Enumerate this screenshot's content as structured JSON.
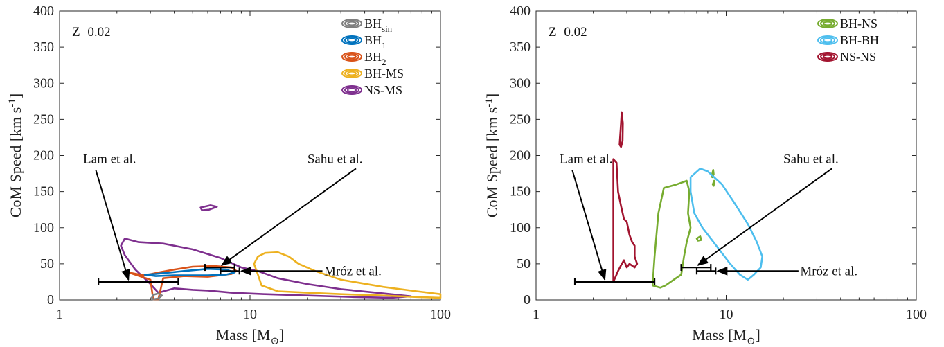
{
  "chart_data": [
    {
      "type": "line",
      "panel": "left",
      "xlabel": "Mass [M",
      "xlabel_sub": "⊙",
      "xlabel_close": "]",
      "ylabel": "CoM Speed [km s",
      "ylabel_sup": "-1",
      "ylabel_close": "]",
      "xscale": "log",
      "xlim": [
        1,
        100
      ],
      "ylim": [
        0,
        400
      ],
      "xticks": [
        {
          "v": 1,
          "label": "1"
        },
        {
          "v": 10,
          "label": "10"
        },
        {
          "v": 100,
          "label": "100"
        }
      ],
      "yticks": [
        {
          "v": 0,
          "label": "0"
        },
        {
          "v": 50,
          "label": "50"
        },
        {
          "v": 100,
          "label": "100"
        },
        {
          "v": 150,
          "label": "150"
        },
        {
          "v": 200,
          "label": "200"
        },
        {
          "v": 250,
          "label": "250"
        },
        {
          "v": 300,
          "label": "300"
        },
        {
          "v": 350,
          "label": "350"
        },
        {
          "v": 400,
          "label": "400"
        }
      ],
      "metallicity_label": "Z=0.02",
      "legend_position": "top-right",
      "legend": [
        {
          "name": "BH",
          "sub": "sin",
          "color": "#7f7f7f"
        },
        {
          "name": "BH",
          "sub": "1",
          "color": "#0072bd"
        },
        {
          "name": "BH",
          "sub": "2",
          "color": "#d95319"
        },
        {
          "name": "BH-MS",
          "sub": "",
          "color": "#edb120"
        },
        {
          "name": "NS-MS",
          "sub": "",
          "color": "#7e2f8e"
        }
      ],
      "series": [
        {
          "legend_index": 4,
          "color": "#7e2f8e",
          "points": [
            [
              2.2,
              85
            ],
            [
              2.6,
              80
            ],
            [
              3.5,
              78
            ],
            [
              5,
              70
            ],
            [
              7,
              58
            ],
            [
              9,
              45
            ],
            [
              11,
              40
            ],
            [
              14,
              30
            ],
            [
              20,
              22
            ],
            [
              30,
              15
            ],
            [
              50,
              9
            ],
            [
              70,
              5
            ],
            [
              55,
              3
            ],
            [
              35,
              4
            ],
            [
              20,
              6
            ],
            [
              12,
              8
            ],
            [
              8,
              10
            ],
            [
              6,
              13
            ],
            [
              5,
              14
            ],
            [
              4,
              16
            ],
            [
              3.3,
              10
            ],
            [
              3.0,
              22
            ],
            [
              2.5,
              42
            ],
            [
              2.2,
              62
            ],
            [
              2.1,
              75
            ],
            [
              2.2,
              85
            ]
          ]
        },
        {
          "legend_index": 4,
          "color": "#7e2f8e",
          "points": [
            [
              5.5,
              128
            ],
            [
              6.2,
              131
            ],
            [
              6.7,
              129
            ],
            [
              6.1,
              125
            ],
            [
              5.6,
              124
            ],
            [
              5.5,
              128
            ]
          ]
        },
        {
          "legend_index": 3,
          "color": "#edb120",
          "points": [
            [
              10.5,
              50
            ],
            [
              11,
              60
            ],
            [
              12,
              65
            ],
            [
              14,
              66
            ],
            [
              16,
              60
            ],
            [
              18,
              50
            ],
            [
              22,
              40
            ],
            [
              30,
              28
            ],
            [
              50,
              18
            ],
            [
              75,
              12
            ],
            [
              100,
              8
            ],
            [
              100,
              3
            ],
            [
              75,
              4
            ],
            [
              50,
              6
            ],
            [
              30,
              8
            ],
            [
              20,
              10
            ],
            [
              14,
              12
            ],
            [
              11.5,
              20
            ],
            [
              11,
              35
            ],
            [
              10.5,
              50
            ]
          ]
        },
        {
          "legend_index": 2,
          "color": "#d95319",
          "points": [
            [
              2.3,
              38
            ],
            [
              2.8,
              34
            ],
            [
              3.3,
              38
            ],
            [
              4,
              42
            ],
            [
              5,
              46
            ],
            [
              6.5,
              47
            ],
            [
              8,
              45
            ],
            [
              8.5,
              40
            ],
            [
              8,
              36
            ],
            [
              6,
              32
            ],
            [
              4.5,
              33
            ],
            [
              3.5,
              30
            ],
            [
              3.3,
              1
            ],
            [
              3.1,
              1
            ],
            [
              3.0,
              28
            ],
            [
              2.7,
              32
            ],
            [
              2.3,
              38
            ]
          ]
        },
        {
          "legend_index": 1,
          "color": "#0072bd",
          "points": [
            [
              2.8,
              35
            ],
            [
              3.2,
              36
            ],
            [
              4.5,
              40
            ],
            [
              6,
              43
            ],
            [
              7.5,
              42
            ],
            [
              8.3,
              38
            ],
            [
              7.5,
              35
            ],
            [
              6,
              34
            ],
            [
              4,
              34
            ],
            [
              3.2,
              33
            ],
            [
              2.8,
              35
            ]
          ]
        },
        {
          "legend_index": 0,
          "color": "#7f7f7f",
          "points": [
            [
              3.1,
              1
            ],
            [
              3.3,
              2
            ],
            [
              3.45,
              6
            ],
            [
              3.3,
              9
            ],
            [
              3.1,
              7
            ],
            [
              3.05,
              3
            ],
            [
              3.1,
              1
            ]
          ]
        }
      ],
      "observations": [
        {
          "label": "Lam et al.",
          "mass": 2.3,
          "mass_lo": 1.6,
          "mass_hi": 4.2,
          "speed": 25,
          "label_x_mass": 1.33,
          "label_y": 195,
          "label_align": "start",
          "arrow_from_mass": 1.55,
          "arrow_from_speed": 180,
          "arrow_to_mass": 2.3,
          "arrow_to_speed": 28
        },
        {
          "label": "Sahu et al.",
          "mass": 7.1,
          "mass_lo": 5.8,
          "mass_hi": 8.3,
          "speed": 45,
          "label_x_mass": 39,
          "label_y": 195,
          "label_align": "end",
          "arrow_from_mass": 36,
          "arrow_from_speed": 182,
          "arrow_to_mass": 7.1,
          "arrow_to_speed": 48
        },
        {
          "label": "Mróz et al.",
          "mass": 7.9,
          "mass_lo": 7.0,
          "mass_hi": 8.8,
          "speed": 40,
          "label_x_mass": 24.5,
          "label_y": 40,
          "label_align": "start",
          "arrow_from_mass": 24,
          "arrow_from_speed": 40,
          "arrow_to_mass": 9.0,
          "arrow_to_speed": 40
        }
      ]
    },
    {
      "type": "line",
      "panel": "right",
      "xlabel": "Mass [M",
      "xlabel_sub": "⊙",
      "xlabel_close": "]",
      "ylabel": "CoM Speed [km s",
      "ylabel_sup": "-1",
      "ylabel_close": "]",
      "xscale": "log",
      "xlim": [
        1,
        100
      ],
      "ylim": [
        0,
        400
      ],
      "xticks": [
        {
          "v": 1,
          "label": "1"
        },
        {
          "v": 10,
          "label": "10"
        },
        {
          "v": 100,
          "label": "100"
        }
      ],
      "yticks": [
        {
          "v": 0,
          "label": "0"
        },
        {
          "v": 50,
          "label": "50"
        },
        {
          "v": 100,
          "label": "100"
        },
        {
          "v": 150,
          "label": "150"
        },
        {
          "v": 200,
          "label": "200"
        },
        {
          "v": 250,
          "label": "250"
        },
        {
          "v": 300,
          "label": "300"
        },
        {
          "v": 350,
          "label": "350"
        },
        {
          "v": 400,
          "label": "400"
        }
      ],
      "metallicity_label": "Z=0.02",
      "legend_position": "top-right",
      "legend": [
        {
          "name": "BH-NS",
          "sub": "",
          "color": "#77ac30"
        },
        {
          "name": "BH-BH",
          "sub": "",
          "color": "#4dbeee"
        },
        {
          "name": "NS-NS",
          "sub": "",
          "color": "#a2142f"
        }
      ],
      "series": [
        {
          "legend_index": 2,
          "color": "#a2142f",
          "points": [
            [
              2.55,
              25
            ],
            [
              2.55,
              100
            ],
            [
              2.55,
              195
            ],
            [
              2.65,
              190
            ],
            [
              2.7,
              150
            ],
            [
              2.8,
              130
            ],
            [
              2.9,
              112
            ],
            [
              3.0,
              108
            ],
            [
              3.1,
              90
            ],
            [
              3.2,
              80
            ],
            [
              3.3,
              75
            ],
            [
              3.3,
              60
            ],
            [
              3.4,
              50
            ],
            [
              3.3,
              45
            ],
            [
              3.1,
              50
            ],
            [
              3.0,
              45
            ],
            [
              2.9,
              55
            ],
            [
              2.8,
              48
            ],
            [
              2.7,
              40
            ],
            [
              2.6,
              30
            ],
            [
              2.55,
              25
            ]
          ]
        },
        {
          "legend_index": 2,
          "color": "#a2142f",
          "points": [
            [
              2.75,
              215
            ],
            [
              2.8,
              245
            ],
            [
              2.82,
              260
            ],
            [
              2.86,
              245
            ],
            [
              2.85,
              220
            ],
            [
              2.8,
              212
            ],
            [
              2.75,
              215
            ]
          ]
        },
        {
          "legend_index": 0,
          "color": "#77ac30",
          "points": [
            [
              4.1,
              20
            ],
            [
              4.2,
              60
            ],
            [
              4.4,
              120
            ],
            [
              4.7,
              155
            ],
            [
              5.5,
              160
            ],
            [
              6.2,
              165
            ],
            [
              6.4,
              150
            ],
            [
              6.3,
              120
            ],
            [
              6.5,
              100
            ],
            [
              6.2,
              80
            ],
            [
              6.0,
              60
            ],
            [
              5.8,
              35
            ],
            [
              5.3,
              28
            ],
            [
              4.8,
              20
            ],
            [
              4.5,
              17
            ],
            [
              4.1,
              20
            ]
          ]
        },
        {
          "legend_index": 0,
          "color": "#77ac30",
          "points": [
            [
              8.4,
              172
            ],
            [
              8.55,
              180
            ],
            [
              8.6,
              174
            ],
            [
              8.45,
              170
            ],
            [
              8.4,
              172
            ]
          ]
        },
        {
          "legend_index": 0,
          "color": "#77ac30",
          "points": [
            [
              8.5,
              160
            ],
            [
              8.65,
              165
            ],
            [
              8.6,
              158
            ],
            [
              8.5,
              160
            ]
          ]
        },
        {
          "legend_index": 0,
          "color": "#77ac30",
          "points": [
            [
              7.0,
              85
            ],
            [
              7.3,
              88
            ],
            [
              7.4,
              83
            ],
            [
              7.1,
              82
            ],
            [
              7.0,
              85
            ]
          ]
        },
        {
          "legend_index": 1,
          "color": "#4dbeee",
          "points": [
            [
              6.5,
              170
            ],
            [
              7.3,
              182
            ],
            [
              8.0,
              178
            ],
            [
              9.5,
              160
            ],
            [
              11,
              135
            ],
            [
              13,
              105
            ],
            [
              14.5,
              80
            ],
            [
              15.5,
              60
            ],
            [
              15.2,
              45
            ],
            [
              14.0,
              35
            ],
            [
              13,
              28
            ],
            [
              11.8,
              35
            ],
            [
              10.5,
              50
            ],
            [
              9.3,
              68
            ],
            [
              8.3,
              85
            ],
            [
              7.5,
              100
            ],
            [
              6.8,
              120
            ],
            [
              6.5,
              150
            ],
            [
              6.5,
              170
            ]
          ]
        }
      ],
      "observations": [
        {
          "label": "Lam et al.",
          "mass": 2.3,
          "mass_lo": 1.6,
          "mass_hi": 4.2,
          "speed": 25,
          "label_x_mass": 1.33,
          "label_y": 195,
          "label_align": "start",
          "arrow_from_mass": 1.55,
          "arrow_from_speed": 180,
          "arrow_to_mass": 2.3,
          "arrow_to_speed": 28
        },
        {
          "label": "Sahu et al.",
          "mass": 7.1,
          "mass_lo": 5.8,
          "mass_hi": 8.3,
          "speed": 45,
          "label_x_mass": 39,
          "label_y": 195,
          "label_align": "end",
          "arrow_from_mass": 36,
          "arrow_from_speed": 182,
          "arrow_to_mass": 7.1,
          "arrow_to_speed": 48
        },
        {
          "label": "Mróz et al.",
          "mass": 7.9,
          "mass_lo": 7.0,
          "mass_hi": 8.8,
          "speed": 40,
          "label_x_mass": 24.5,
          "label_y": 40,
          "label_align": "start",
          "arrow_from_mass": 24,
          "arrow_from_speed": 40,
          "arrow_to_mass": 9.0,
          "arrow_to_speed": 40
        }
      ]
    }
  ]
}
